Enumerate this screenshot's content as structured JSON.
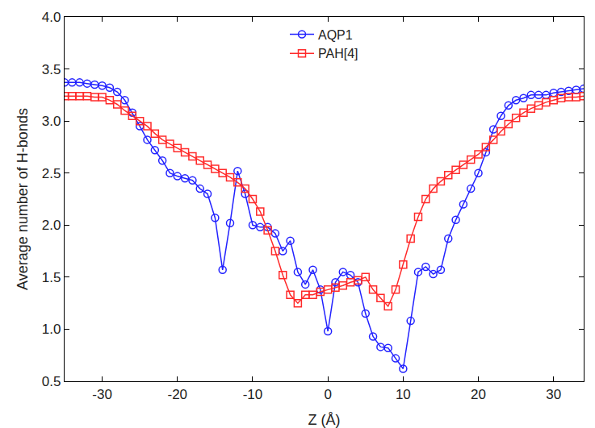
{
  "chart_data": {
    "type": "line",
    "x_label": "Z (Å)",
    "y_label": "Average number of H-bonds",
    "x": [
      -35,
      -34,
      -33,
      -32,
      -31,
      -30,
      -29,
      -28,
      -27,
      -26,
      -25,
      -24,
      -23,
      -22,
      -21,
      -20,
      -19,
      -18,
      -17,
      -16,
      -15,
      -14,
      -13,
      -12,
      -11,
      -10,
      -9,
      -8,
      -7,
      -6,
      -5,
      -4,
      -3,
      -2,
      -1,
      0,
      1,
      2,
      3,
      4,
      5,
      6,
      7,
      8,
      9,
      10,
      11,
      12,
      13,
      14,
      15,
      16,
      17,
      18,
      19,
      20,
      21,
      22,
      23,
      24,
      25,
      26,
      27,
      28,
      29,
      30,
      31,
      32,
      33,
      34
    ],
    "series": [
      {
        "name": "AQP1",
        "color": "#2222ff",
        "marker": "circle-open",
        "values": [
          3.37,
          3.37,
          3.37,
          3.36,
          3.35,
          3.34,
          3.32,
          3.28,
          3.2,
          3.08,
          2.95,
          2.82,
          2.72,
          2.62,
          2.5,
          2.47,
          2.45,
          2.43,
          2.35,
          2.3,
          2.07,
          1.57,
          2.02,
          2.52,
          2.3,
          2.0,
          1.98,
          1.98,
          1.92,
          1.75,
          1.85,
          1.55,
          1.43,
          1.57,
          1.38,
          0.98,
          1.45,
          1.55,
          1.52,
          1.45,
          1.15,
          0.93,
          0.83,
          0.82,
          0.72,
          0.62,
          1.08,
          1.55,
          1.6,
          1.53,
          1.57,
          1.87,
          2.05,
          2.2,
          2.35,
          2.5,
          2.7,
          2.92,
          3.05,
          3.15,
          3.2,
          3.22,
          3.25,
          3.25,
          3.25,
          3.27,
          3.28,
          3.29,
          3.3,
          3.31
        ]
      },
      {
        "name": "PAH[4]",
        "color": "#ff2a2a",
        "marker": "square-open",
        "values": [
          3.24,
          3.24,
          3.24,
          3.24,
          3.23,
          3.23,
          3.2,
          3.16,
          3.1,
          3.05,
          3.0,
          2.95,
          2.88,
          2.82,
          2.78,
          2.74,
          2.7,
          2.66,
          2.62,
          2.58,
          2.54,
          2.5,
          2.46,
          2.41,
          2.35,
          2.25,
          2.13,
          1.95,
          1.75,
          1.52,
          1.33,
          1.25,
          1.33,
          1.33,
          1.36,
          1.38,
          1.4,
          1.42,
          1.45,
          1.47,
          1.5,
          1.38,
          1.3,
          1.22,
          1.38,
          1.62,
          1.87,
          2.08,
          2.25,
          2.35,
          2.42,
          2.48,
          2.53,
          2.58,
          2.63,
          2.68,
          2.75,
          2.82,
          2.9,
          2.97,
          3.03,
          3.08,
          3.12,
          3.15,
          3.18,
          3.2,
          3.22,
          3.23,
          3.23,
          3.24
        ]
      }
    ],
    "xlim": [
      -35,
      34
    ],
    "xticks": [
      -30,
      -20,
      -10,
      0,
      10,
      20,
      30
    ],
    "ylim": [
      0.5,
      4.0
    ],
    "yticks": [
      {
        "value": 0.5,
        "label": "0.5"
      },
      {
        "value": 1.0,
        "label": "1.0"
      },
      {
        "value": 1.5,
        "label": "1.5"
      },
      {
        "value": 2.0,
        "label": "2.0"
      },
      {
        "value": 2.5,
        "label": "2.5"
      },
      {
        "value": 3.0,
        "label": "3.0"
      },
      {
        "value": 3.5,
        "label": "3.5"
      },
      {
        "value": 4.0,
        "label": "4.0"
      }
    ],
    "grid": false,
    "legend": "top"
  }
}
